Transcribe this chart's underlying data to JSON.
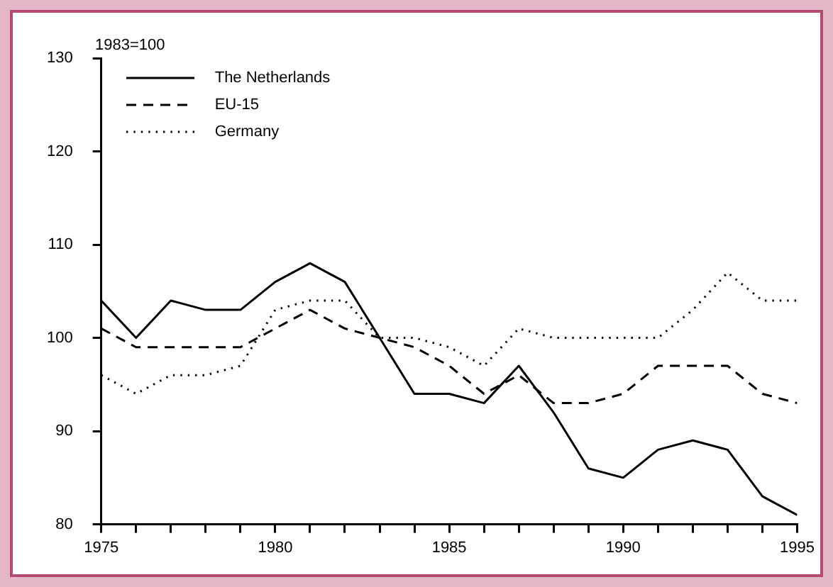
{
  "chart_data": {
    "type": "line",
    "ylabel": "1983=100",
    "x": [
      1975,
      1976,
      1977,
      1978,
      1979,
      1980,
      1981,
      1982,
      1983,
      1984,
      1985,
      1986,
      1987,
      1988,
      1989,
      1990,
      1991,
      1992,
      1993,
      1994,
      1995
    ],
    "series": [
      {
        "name": "The Netherlands",
        "color": "#000000",
        "line_style": "solid",
        "values": [
          104,
          100,
          104,
          103,
          103,
          106,
          108,
          106,
          100,
          94,
          94,
          93,
          97,
          92,
          86,
          85,
          88,
          89,
          88,
          83,
          81
        ]
      },
      {
        "name": "EU-15",
        "color": "#000000",
        "line_style": "dashed",
        "values": [
          101,
          99,
          99,
          99,
          99,
          101,
          103,
          101,
          100,
          99,
          97,
          94,
          96,
          93,
          93,
          94,
          97,
          97,
          97,
          94,
          93
        ]
      },
      {
        "name": "Germany",
        "color": "#000000",
        "line_style": "dotted",
        "values": [
          96,
          94,
          96,
          96,
          97,
          103,
          104,
          104,
          100,
          100,
          99,
          97,
          101,
          100,
          100,
          100,
          100,
          103,
          107,
          104,
          104
        ]
      }
    ],
    "xlim": [
      1975,
      1995
    ],
    "xticks": [
      1975,
      {
        "value": 1976,
        "label": null
      },
      {
        "value": 1977,
        "label": null
      },
      {
        "value": 1978,
        "label": null
      },
      {
        "value": 1979,
        "label": null
      },
      1980,
      {
        "value": 1981,
        "label": null
      },
      {
        "value": 1982,
        "label": null
      },
      {
        "value": 1983,
        "label": null
      },
      {
        "value": 1984,
        "label": null
      },
      1985,
      {
        "value": 1986,
        "label": null
      },
      {
        "value": 1987,
        "label": null
      },
      {
        "value": 1988,
        "label": null
      },
      {
        "value": 1989,
        "label": null
      },
      1990,
      {
        "value": 1991,
        "label": null
      },
      {
        "value": 1992,
        "label": null
      },
      {
        "value": 1993,
        "label": null
      },
      {
        "value": 1994,
        "label": null
      },
      1995
    ],
    "ylim": [
      80,
      130
    ],
    "yticks": [
      80,
      90,
      100,
      110,
      120,
      130
    ],
    "grid": false,
    "legend": "top left",
    "marker": "none"
  }
}
